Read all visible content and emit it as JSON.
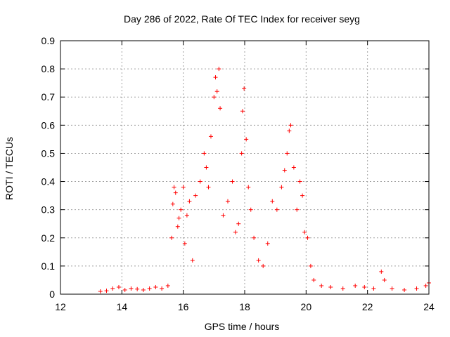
{
  "chart_data": {
    "type": "scatter",
    "title": "Day 286 of 2022, Rate Of TEC Index for receiver seyg",
    "xlabel": "GPS time / hours",
    "ylabel": "ROTI / TECUs",
    "xlim": [
      12,
      24
    ],
    "ylim": [
      0,
      0.9
    ],
    "x_ticks": [
      "12",
      "14",
      "16",
      "18",
      "20",
      "22",
      "24"
    ],
    "y_ticks": [
      "0",
      "0.1",
      "0.2",
      "0.3",
      "0.4",
      "0.5",
      "0.6",
      "0.7",
      "0.8",
      "0.9"
    ],
    "grid": true,
    "legend": "none",
    "marker": "+",
    "colors": {
      "series": "#ff0000",
      "grid": "#a0a0a0",
      "axes": "#000000"
    },
    "series": [
      {
        "x": [
          13.3,
          13.5,
          13.7,
          13.9,
          14.1,
          14.3,
          14.5,
          14.7,
          14.9,
          15.1,
          15.3,
          15.5,
          15.62,
          15.66,
          15.7,
          15.75,
          15.82,
          15.86,
          15.92,
          16.0,
          16.05,
          16.12,
          16.2,
          16.3,
          16.4,
          16.55,
          16.68,
          16.75,
          16.82,
          16.9,
          17.0,
          17.05,
          17.1,
          17.16,
          17.2,
          17.3,
          17.45,
          17.6,
          17.7,
          17.8,
          17.9,
          17.93,
          17.98,
          18.05,
          18.12,
          18.2,
          18.3,
          18.45,
          18.6,
          18.75,
          18.9,
          19.05,
          19.2,
          19.3,
          19.38,
          19.45,
          19.5,
          19.6,
          19.7,
          19.8,
          19.88,
          19.95,
          20.05,
          20.15,
          20.25,
          20.5,
          20.8,
          21.2,
          21.6,
          21.9,
          22.2,
          22.45,
          22.55,
          22.8,
          23.2,
          23.6,
          23.9,
          24.0
        ],
        "y": [
          0.01,
          0.012,
          0.02,
          0.025,
          0.015,
          0.02,
          0.018,
          0.015,
          0.02,
          0.025,
          0.02,
          0.03,
          0.2,
          0.32,
          0.38,
          0.36,
          0.24,
          0.27,
          0.3,
          0.38,
          0.18,
          0.28,
          0.33,
          0.12,
          0.35,
          0.4,
          0.5,
          0.45,
          0.38,
          0.56,
          0.7,
          0.77,
          0.72,
          0.8,
          0.66,
          0.28,
          0.33,
          0.4,
          0.22,
          0.25,
          0.5,
          0.65,
          0.73,
          0.55,
          0.38,
          0.3,
          0.2,
          0.12,
          0.1,
          0.18,
          0.33,
          0.3,
          0.38,
          0.44,
          0.5,
          0.58,
          0.6,
          0.45,
          0.3,
          0.4,
          0.35,
          0.22,
          0.2,
          0.1,
          0.05,
          0.03,
          0.025,
          0.02,
          0.03,
          0.025,
          0.02,
          0.08,
          0.05,
          0.02,
          0.015,
          0.02,
          0.03,
          0.04
        ]
      }
    ]
  }
}
